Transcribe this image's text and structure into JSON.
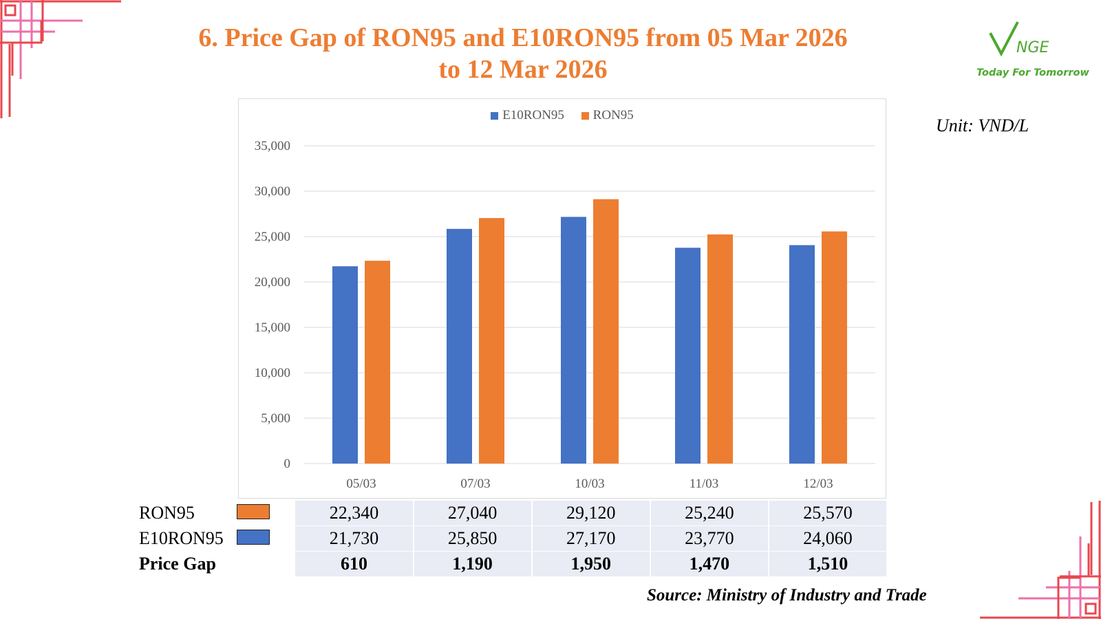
{
  "title": {
    "line1": "6. Price Gap of RON95 and E10RON95 from 05 Mar 2026",
    "line2": "to 12 Mar 2026"
  },
  "logo": {
    "mark": "VNGE",
    "tagline": "Today For Tomorrow"
  },
  "unit_label": "Unit: VND/L",
  "source_label": "Source: Ministry of Industry and Trade",
  "colors": {
    "e10ron95": "#4472C4",
    "ron95": "#ED7D31",
    "title": "#ED7D31",
    "logo": "#4CA82F",
    "corner_red": "#E8474E",
    "corner_pink": "#EE6FA8"
  },
  "chart_data": {
    "type": "bar",
    "categories": [
      "05/03",
      "07/03",
      "10/03",
      "11/03",
      "12/03"
    ],
    "series": [
      {
        "name": "E10RON95",
        "values": [
          21730,
          25850,
          27170,
          23770,
          24060
        ]
      },
      {
        "name": "RON95",
        "values": [
          22340,
          27040,
          29120,
          25240,
          25570
        ]
      }
    ],
    "ylim": [
      0,
      35000
    ],
    "yticks": [
      "0",
      "5,000",
      "10,000",
      "15,000",
      "20,000",
      "25,000",
      "30,000",
      "35,000"
    ],
    "grid": true,
    "legend_position": "top"
  },
  "table": {
    "rows": [
      {
        "label": "RON95",
        "values": [
          "22,340",
          "27,040",
          "29,120",
          "25,240",
          "25,570"
        ]
      },
      {
        "label": "E10RON95",
        "values": [
          "21,730",
          "25,850",
          "27,170",
          "23,770",
          "24,060"
        ]
      },
      {
        "label": "Price Gap",
        "values": [
          "610",
          "1,190",
          "1,950",
          "1,470",
          "1,510"
        ]
      }
    ]
  }
}
